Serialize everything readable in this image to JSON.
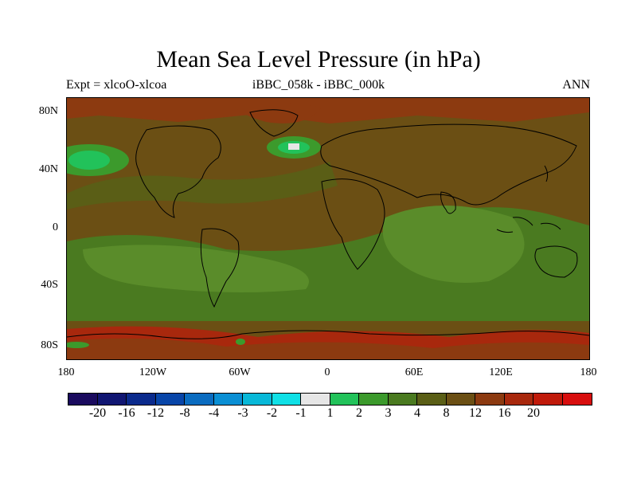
{
  "figure": {
    "title": "Mean Sea Level Pressure (in hPa)",
    "left_label": "Expt = xlcoO-xlcoa",
    "center_label": "iBBC_058k - iBBC_000k",
    "right_label": "ANN"
  },
  "map": {
    "projection": "cylindrical-equidistant",
    "lon_range": [
      -180,
      180
    ],
    "lat_range": [
      -90,
      90
    ],
    "y_ticks": [
      "80N",
      "40N",
      "0",
      "40S",
      "80S"
    ],
    "x_ticks": [
      "180",
      "120W",
      "60W",
      "0",
      "60E",
      "120E",
      "180"
    ],
    "background_color": "#6b4f14",
    "regions": [
      {
        "name": "north-pacific-high",
        "color": "#2bbc4a"
      },
      {
        "name": "north-atlantic-anomaly",
        "color": "#22c25a"
      },
      {
        "name": "south-pacific-band",
        "color": "#5a8c2a"
      },
      {
        "name": "indian-ocean",
        "color": "#5a8c2a"
      },
      {
        "name": "arctic",
        "color": "#8c3a10"
      },
      {
        "name": "antarctic-coast",
        "color": "#a8280d"
      }
    ]
  },
  "colorbar": {
    "colors": [
      "#1a0a5e",
      "#101672",
      "#0a2a8c",
      "#0845a8",
      "#0a6cc0",
      "#0a8fd4",
      "#08b8d8",
      "#10e0e6",
      "#e6e6e6",
      "#22c25a",
      "#3c9a2c",
      "#4a7a20",
      "#5a5e16",
      "#6b4f14",
      "#8c3a10",
      "#a8280d",
      "#c01a0a",
      "#d80e0e"
    ],
    "labels": [
      "-20",
      "-16",
      "-12",
      "-8",
      "-4",
      "-3",
      "-2",
      "-1",
      "1",
      "2",
      "3",
      "4",
      "8",
      "12",
      "16",
      "20"
    ]
  }
}
